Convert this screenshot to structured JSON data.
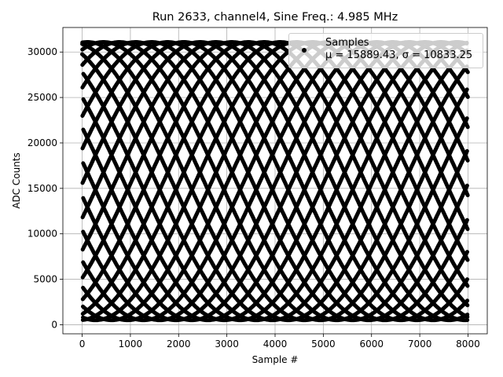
{
  "chart_data": {
    "type": "scatter",
    "title": "Run 2633, channel4, Sine Freq.: 4.985 MHz",
    "xlabel": "Sample #",
    "ylabel": "ADC Counts",
    "xlim": [
      -400,
      8400
    ],
    "ylim": [
      -1000,
      32700
    ],
    "xticks": [
      0,
      1000,
      2000,
      3000,
      4000,
      5000,
      6000,
      7000,
      8000
    ],
    "yticks": [
      0,
      5000,
      10000,
      15000,
      20000,
      25000,
      30000
    ],
    "grid": true,
    "legend_position": "top-right",
    "series": [
      {
        "name": "Samples",
        "n_samples": 8000,
        "model": {
          "mean": 15800,
          "amplitude": 15300,
          "cycles_per_sample": 0.03988,
          "phase": 1.15
        },
        "color": "#000000"
      }
    ],
    "legend_stats": "μ = 15889.43, σ = 10833.25"
  }
}
